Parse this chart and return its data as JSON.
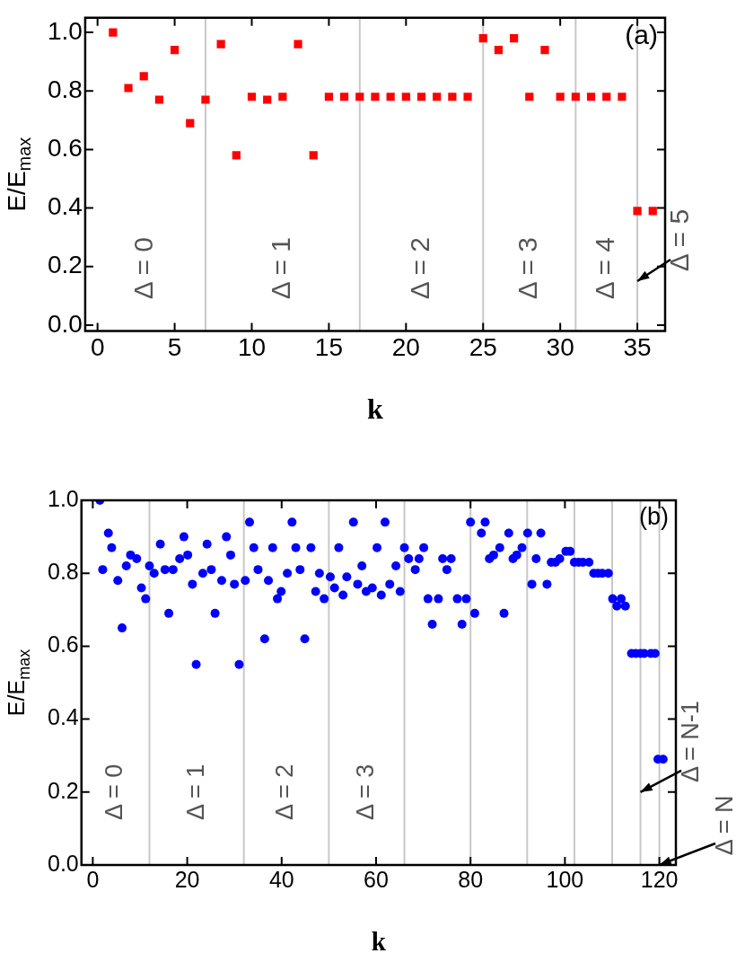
{
  "chart_data": [
    {
      "type": "scatter",
      "title": "(a)",
      "xlabel": "k",
      "ylabel": "E/E$_{max}$",
      "marker": "square",
      "xlim": [
        -0.8,
        36.8
      ],
      "xticks": [
        0,
        5,
        10,
        15,
        20,
        25,
        30,
        35
      ],
      "ylim": [
        -0.02,
        1.05
      ],
      "yticks": [
        {
          "value": 0,
          "label": "0.0"
        },
        {
          "value": 0.2,
          "label": "0.2"
        },
        {
          "value": 0.4,
          "label": "0.4"
        },
        {
          "value": 0.6,
          "label": "0.6"
        },
        {
          "value": 0.8,
          "label": "0.8"
        },
        {
          "value": 1,
          "label": "1.0"
        }
      ],
      "series": [
        {
          "color": "#ff0000",
          "x": [
            1,
            2,
            3,
            4,
            5,
            6,
            7,
            8,
            9,
            10,
            11,
            12,
            13,
            14,
            15,
            16,
            17,
            18,
            19,
            20,
            21,
            22,
            23,
            24,
            25,
            26,
            27,
            28,
            29,
            30,
            31,
            32,
            33,
            34,
            35,
            36
          ],
          "values": [
            1.0,
            0.81,
            0.85,
            0.77,
            0.94,
            0.69,
            0.77,
            0.96,
            0.58,
            0.78,
            0.77,
            0.78,
            0.96,
            0.58,
            0.78,
            0.78,
            0.78,
            0.78,
            0.78,
            0.78,
            0.78,
            0.78,
            0.78,
            0.78,
            0.98,
            0.94,
            0.98,
            0.78,
            0.94,
            0.78,
            0.78,
            0.78,
            0.78,
            0.78,
            0.39,
            0.39
          ]
        }
      ],
      "ref_lines": [
        {
          "axis": "x",
          "value": 7,
          "color": "#c8c8c8"
        },
        {
          "axis": "x",
          "value": 17,
          "color": "#c8c8c8"
        },
        {
          "axis": "x",
          "value": 25,
          "color": "#c8c8c8"
        },
        {
          "axis": "x",
          "value": 31,
          "color": "#c8c8c8"
        },
        {
          "axis": "x",
          "value": 35,
          "color": "#c8c8c8"
        }
      ],
      "annotations": [
        "Δ = 0",
        "Δ = 1",
        "Δ = 2",
        "Δ = 3",
        "Δ = 4",
        {
          "text": "Δ = 5",
          "x": 35,
          "y": 0.15
        }
      ]
    },
    {
      "type": "scatter",
      "title": "(b)",
      "xlabel": "k",
      "ylabel": "E/E$_{max}$",
      "marker": "circle",
      "xlim": [
        -2.4,
        123.5
      ],
      "xticks": [
        0,
        20,
        40,
        60,
        80,
        100,
        120
      ],
      "ylim": [
        0,
        1
      ],
      "yticks": [
        {
          "value": 0,
          "label": "0.0"
        },
        {
          "value": 0.2,
          "label": "0.2"
        },
        {
          "value": 0.4,
          "label": "0.4"
        },
        {
          "value": 0.6,
          "label": "0.6"
        },
        {
          "value": 0.8,
          "label": "0.8"
        },
        {
          "value": 1,
          "label": "1.0"
        }
      ],
      "series": [
        {
          "color": "#0000ff",
          "x": [
            1.5,
            2.1,
            3.3,
            4.0,
            5.3,
            6.2,
            7.1,
            8.0,
            9.3,
            10.3,
            11.2,
            12.0,
            13.0,
            14.3,
            15.3,
            16.1,
            17.0,
            18.4,
            19.3,
            20.1,
            21.1,
            21.9,
            23.3,
            24.2,
            25.1,
            25.9,
            27.3,
            28.3,
            29.2,
            30.0,
            31.0,
            32.3,
            33.2,
            34.1,
            35.0,
            36.4,
            37.2,
            38.1,
            39.1,
            39.9,
            41.2,
            42.2,
            43.0,
            43.9,
            44.9,
            46.2,
            47.2,
            48.0,
            49.0,
            50.3,
            51.2,
            52.1,
            53.0,
            53.8,
            55.2,
            56.1,
            57.0,
            57.9,
            59.2,
            60.2,
            61.1,
            61.9,
            62.9,
            64.2,
            65.1,
            66.0,
            66.9,
            68.3,
            69.1,
            70.1,
            71.0,
            71.9,
            73.2,
            74.1,
            75.0,
            75.9,
            77.2,
            78.2,
            79.1,
            80.0,
            80.9,
            82.3,
            83.1,
            84.0,
            84.9,
            86.2,
            87.1,
            88.1,
            89.0,
            89.8,
            90.9,
            92.1,
            93.0,
            93.9,
            94.9,
            96.2,
            97.1,
            98.0,
            98.9,
            100.2,
            101.1,
            102.0,
            102.9,
            103.8,
            105.1,
            106.1,
            107.0,
            107.9,
            109.2,
            110.1,
            111.0,
            111.9,
            112.8,
            114.1,
            115.0,
            116.0,
            116.8,
            118.2,
            119.1,
            119.7,
            120.8
          ],
          "values": [
            1.0,
            0.81,
            0.91,
            0.87,
            0.78,
            0.65,
            0.82,
            0.85,
            0.84,
            0.76,
            0.73,
            0.82,
            0.8,
            0.88,
            0.81,
            0.69,
            0.81,
            0.84,
            0.9,
            0.85,
            0.77,
            0.55,
            0.8,
            0.88,
            0.81,
            0.69,
            0.78,
            0.9,
            0.85,
            0.77,
            0.55,
            0.78,
            0.94,
            0.87,
            0.81,
            0.62,
            0.78,
            0.87,
            0.73,
            0.75,
            0.8,
            0.94,
            0.87,
            0.81,
            0.62,
            0.87,
            0.75,
            0.8,
            0.73,
            0.79,
            0.76,
            0.87,
            0.74,
            0.79,
            0.94,
            0.77,
            0.82,
            0.75,
            0.76,
            0.87,
            0.74,
            0.94,
            0.77,
            0.82,
            0.75,
            0.87,
            0.84,
            0.81,
            0.84,
            0.87,
            0.73,
            0.66,
            0.73,
            0.84,
            0.81,
            0.84,
            0.73,
            0.66,
            0.73,
            0.94,
            0.69,
            0.91,
            0.94,
            0.84,
            0.85,
            0.87,
            0.69,
            0.91,
            0.84,
            0.85,
            0.87,
            0.91,
            0.77,
            0.84,
            0.91,
            0.77,
            0.83,
            0.83,
            0.84,
            0.86,
            0.86,
            0.83,
            0.83,
            0.83,
            0.83,
            0.8,
            0.8,
            0.8,
            0.8,
            0.73,
            0.71,
            0.73,
            0.71,
            0.58,
            0.58,
            0.58,
            0.58,
            0.58,
            0.58,
            0.29,
            0.29
          ]
        }
      ],
      "ref_lines": [
        {
          "axis": "x",
          "value": 12,
          "color": "#c8c8c8"
        },
        {
          "axis": "x",
          "value": 32,
          "color": "#c8c8c8"
        },
        {
          "axis": "x",
          "value": 50,
          "color": "#c8c8c8"
        },
        {
          "axis": "x",
          "value": 66,
          "color": "#c8c8c8"
        },
        {
          "axis": "x",
          "value": 80,
          "color": "#c8c8c8"
        },
        {
          "axis": "x",
          "value": 92,
          "color": "#c8c8c8"
        },
        {
          "axis": "x",
          "value": 102,
          "color": "#c8c8c8"
        },
        {
          "axis": "x",
          "value": 110,
          "color": "#c8c8c8"
        },
        {
          "axis": "x",
          "value": 116,
          "color": "#c8c8c8"
        },
        {
          "axis": "x",
          "value": 120,
          "color": "#c8c8c8"
        }
      ],
      "annotations": [
        "Δ = 0",
        "Δ = 1",
        "Δ = 2",
        "Δ = 3",
        {
          "text": "Δ = N-1",
          "x": 116,
          "y": 0.2
        },
        {
          "text": "Δ = N",
          "x": 120,
          "y": 0.0
        }
      ]
    }
  ]
}
